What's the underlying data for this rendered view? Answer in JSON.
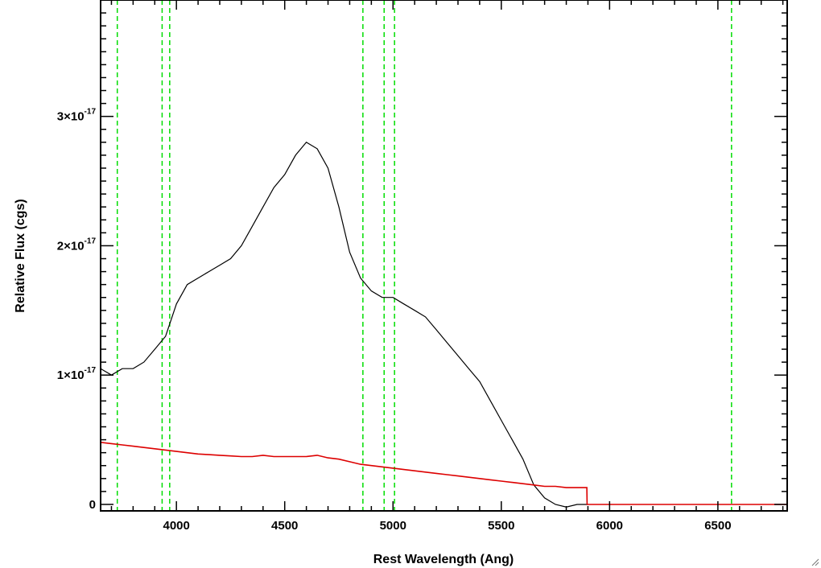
{
  "chart_data": {
    "type": "line",
    "title": "",
    "xlabel": "Rest Wavelength (Ang)",
    "ylabel": "Relative Flux (cgs)",
    "xlim": [
      3650,
      6820
    ],
    "ylim": [
      -5e-19,
      3.9e-17
    ],
    "x_ticks": [
      {
        "value": 4000,
        "label": "4000"
      },
      {
        "value": 4500,
        "label": "4500"
      },
      {
        "value": 5000,
        "label": "5000"
      },
      {
        "value": 5500,
        "label": "5500"
      },
      {
        "value": 6000,
        "label": "6000"
      },
      {
        "value": 6500,
        "label": "6500"
      }
    ],
    "y_ticks": [
      {
        "value": 0,
        "mant": "0",
        "exp": ""
      },
      {
        "value": 1e-17,
        "mant": "1×10",
        "exp": "-17"
      },
      {
        "value": 2e-17,
        "mant": "2×10",
        "exp": "-17"
      },
      {
        "value": 3e-17,
        "mant": "3×10",
        "exp": "-17"
      }
    ],
    "reference_lines": [
      3727,
      3934,
      3969,
      4861,
      4959,
      5007,
      6563
    ],
    "reference_line_color": "#00dd00",
    "series": [
      {
        "color": "#000000",
        "x": [
          3650,
          3700,
          3750,
          3800,
          3850,
          3900,
          3950,
          4000,
          4050,
          4100,
          4150,
          4200,
          4250,
          4300,
          4350,
          4400,
          4450,
          4500,
          4550,
          4600,
          4650,
          4700,
          4750,
          4800,
          4850,
          4900,
          4950,
          5000,
          5050,
          5100,
          5150,
          5200,
          5250,
          5300,
          5350,
          5400,
          5450,
          5500,
          5550,
          5600,
          5650,
          5700,
          5750,
          5800,
          5850,
          5900
        ],
        "values": [
          1.05e-17,
          1e-17,
          1.05e-17,
          1.05e-17,
          1.1e-17,
          1.2e-17,
          1.3e-17,
          1.55e-17,
          1.7e-17,
          1.75e-17,
          1.8e-17,
          1.85e-17,
          1.9e-17,
          2e-17,
          2.15e-17,
          2.3e-17,
          2.45e-17,
          2.55e-17,
          2.7e-17,
          2.8e-17,
          2.75e-17,
          2.6e-17,
          2.3e-17,
          1.95e-17,
          1.75e-17,
          1.65e-17,
          1.6e-17,
          1.6e-17,
          1.55e-17,
          1.5e-17,
          1.45e-17,
          1.35e-17,
          1.25e-17,
          1.15e-17,
          1.05e-17,
          9.5e-18,
          8e-18,
          6.5e-18,
          5e-18,
          3.5e-18,
          1.5e-18,
          5e-19,
          0.0,
          -2e-19,
          0.0,
          0.0
        ]
      },
      {
        "color": "#dd0000",
        "x": [
          3650,
          3700,
          3750,
          3800,
          3850,
          3900,
          3950,
          4000,
          4050,
          4100,
          4150,
          4200,
          4250,
          4300,
          4350,
          4400,
          4450,
          4500,
          4550,
          4600,
          4650,
          4700,
          4750,
          4800,
          4850,
          4900,
          4950,
          5000,
          5050,
          5100,
          5150,
          5200,
          5250,
          5300,
          5350,
          5400,
          5450,
          5500,
          5550,
          5600,
          5650,
          5700,
          5750,
          5800,
          5850,
          5895,
          5896,
          6000,
          6200,
          6400,
          6600,
          6820
        ],
        "values": [
          4.8e-18,
          4.7e-18,
          4.6e-18,
          4.5e-18,
          4.4e-18,
          4.3e-18,
          4.2e-18,
          4.1e-18,
          4e-18,
          3.9e-18,
          3.85e-18,
          3.8e-18,
          3.75e-18,
          3.7e-18,
          3.7e-18,
          3.8e-18,
          3.7e-18,
          3.7e-18,
          3.7e-18,
          3.7e-18,
          3.8e-18,
          3.6e-18,
          3.5e-18,
          3.3e-18,
          3.1e-18,
          3e-18,
          2.9e-18,
          2.8e-18,
          2.7e-18,
          2.6e-18,
          2.5e-18,
          2.4e-18,
          2.3e-18,
          2.2e-18,
          2.1e-18,
          2e-18,
          1.9e-18,
          1.8e-18,
          1.7e-18,
          1.6e-18,
          1.5e-18,
          1.4e-18,
          1.4e-18,
          1.3e-18,
          1.3e-18,
          1.3e-18,
          0.0,
          0.0,
          0.0,
          0.0,
          0.0,
          0.0
        ]
      }
    ]
  }
}
